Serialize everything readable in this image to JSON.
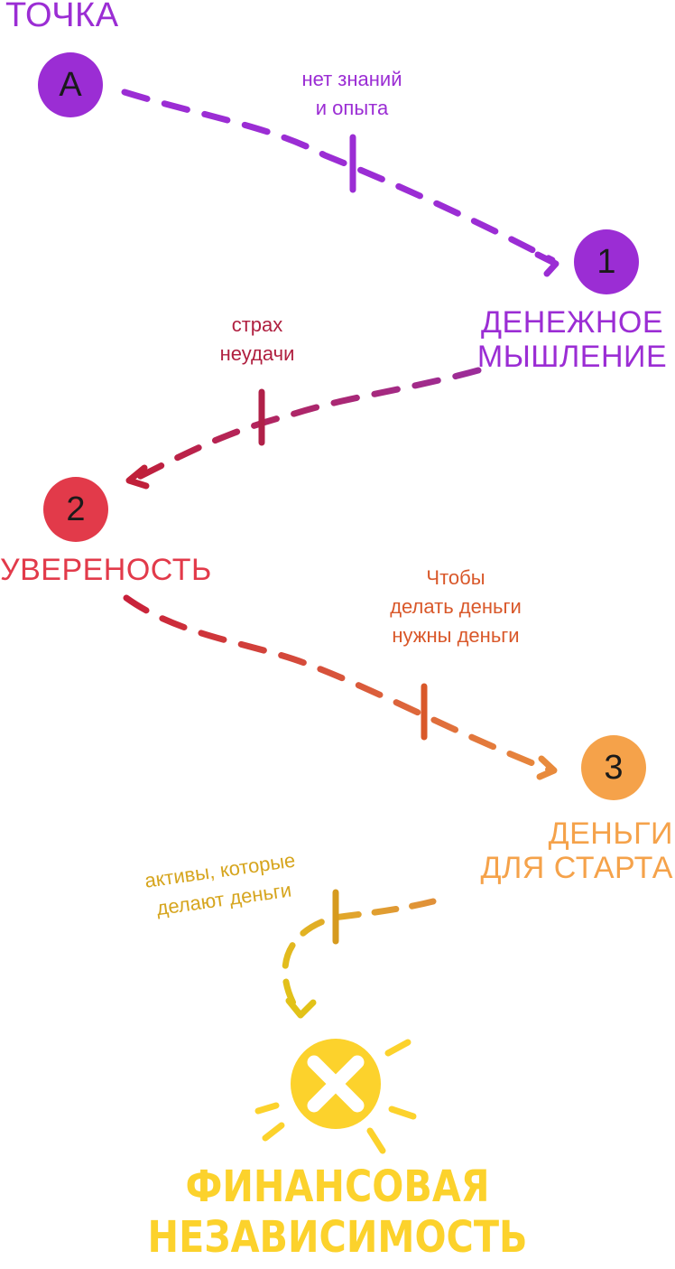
{
  "start": {
    "title": "ТОЧКА",
    "node_label": "A",
    "color": "#9b2dd4"
  },
  "steps": [
    {
      "number": "1",
      "title_line1": "ДЕНЕЖНОЕ",
      "title_line2": "МЫШЛЕНИЕ",
      "color": "#9b2dd4"
    },
    {
      "number": "2",
      "title_line1": "УВЕРЕНОСТЬ",
      "color": "#e23a4a"
    },
    {
      "number": "3",
      "title_line1": "ДЕНЬГИ",
      "title_line2": "ДЛЯ СТАРТА",
      "color": "#f5a24a"
    }
  ],
  "obstacles": [
    {
      "line1": "нет знаний",
      "line2": "и опыта",
      "color": "#9b2dd4"
    },
    {
      "line1": "страх",
      "line2": "неудачи",
      "color": "#b02040"
    },
    {
      "line1": "Чтобы",
      "line2": "делать деньги",
      "line3": "нужны деньги",
      "color": "#d9582a"
    },
    {
      "line1": "активы, которые",
      "line2": "делают деньги",
      "color": "#d6a51e"
    }
  ],
  "goal": {
    "line1": "ФИНАНСОВАЯ",
    "line2": "НЕЗАВИСИМОСТЬ",
    "color": "#fcd22c",
    "icon": "cross-icon"
  }
}
